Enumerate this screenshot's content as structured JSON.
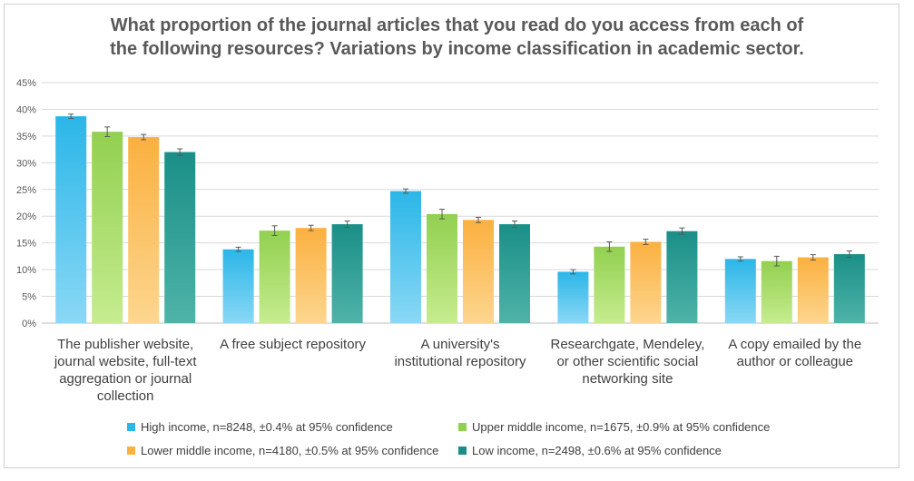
{
  "chart_data": {
    "type": "bar",
    "title_lines": [
      "What proportion of the journal articles that you read do you access from each of",
      "the following resources? Variations by income classification in academic sector."
    ],
    "categories": [
      [
        "The publisher website,",
        "journal website, full-text",
        "aggregation or journal",
        "collection"
      ],
      [
        "A free subject repository"
      ],
      [
        "A university's",
        "institutional repository"
      ],
      [
        "Researchgate, Mendeley,",
        "or other scientific social",
        "networking site"
      ],
      [
        "A copy emailed by the",
        "author or colleague"
      ]
    ],
    "y_ticks": [
      "0%",
      "5%",
      "10%",
      "15%",
      "20%",
      "25%",
      "30%",
      "35%",
      "40%",
      "45%"
    ],
    "ylim": [
      0,
      45
    ],
    "grid": true,
    "legend_position": "bottom",
    "series": [
      {
        "name": "High income, n=8248, ±0.4% at 95% confidence",
        "color": "#2bb6e8",
        "color_dark": "#8ad8f5",
        "values": [
          38.7,
          13.8,
          24.7,
          9.6,
          12.0
        ],
        "error": 0.4
      },
      {
        "name": "Upper middle income, n=1675, ±0.9% at 95% confidence",
        "color": "#92d050",
        "color_dark": "#c6ec8f",
        "values": [
          35.8,
          17.3,
          20.4,
          14.3,
          11.6
        ],
        "error": 0.9
      },
      {
        "name": "Lower middle income, n=4180, ±0.5% at 95% confidence",
        "color": "#fbb040",
        "color_dark": "#fdd68f",
        "values": [
          34.8,
          17.8,
          19.3,
          15.2,
          12.3
        ],
        "error": 0.5
      },
      {
        "name": "Low income, n=2498, ±0.6% at 95% confidence",
        "color": "#1a8f87",
        "color_dark": "#4fb3a9",
        "values": [
          32.0,
          18.5,
          18.5,
          17.2,
          12.9
        ],
        "error": 0.6
      }
    ]
  }
}
